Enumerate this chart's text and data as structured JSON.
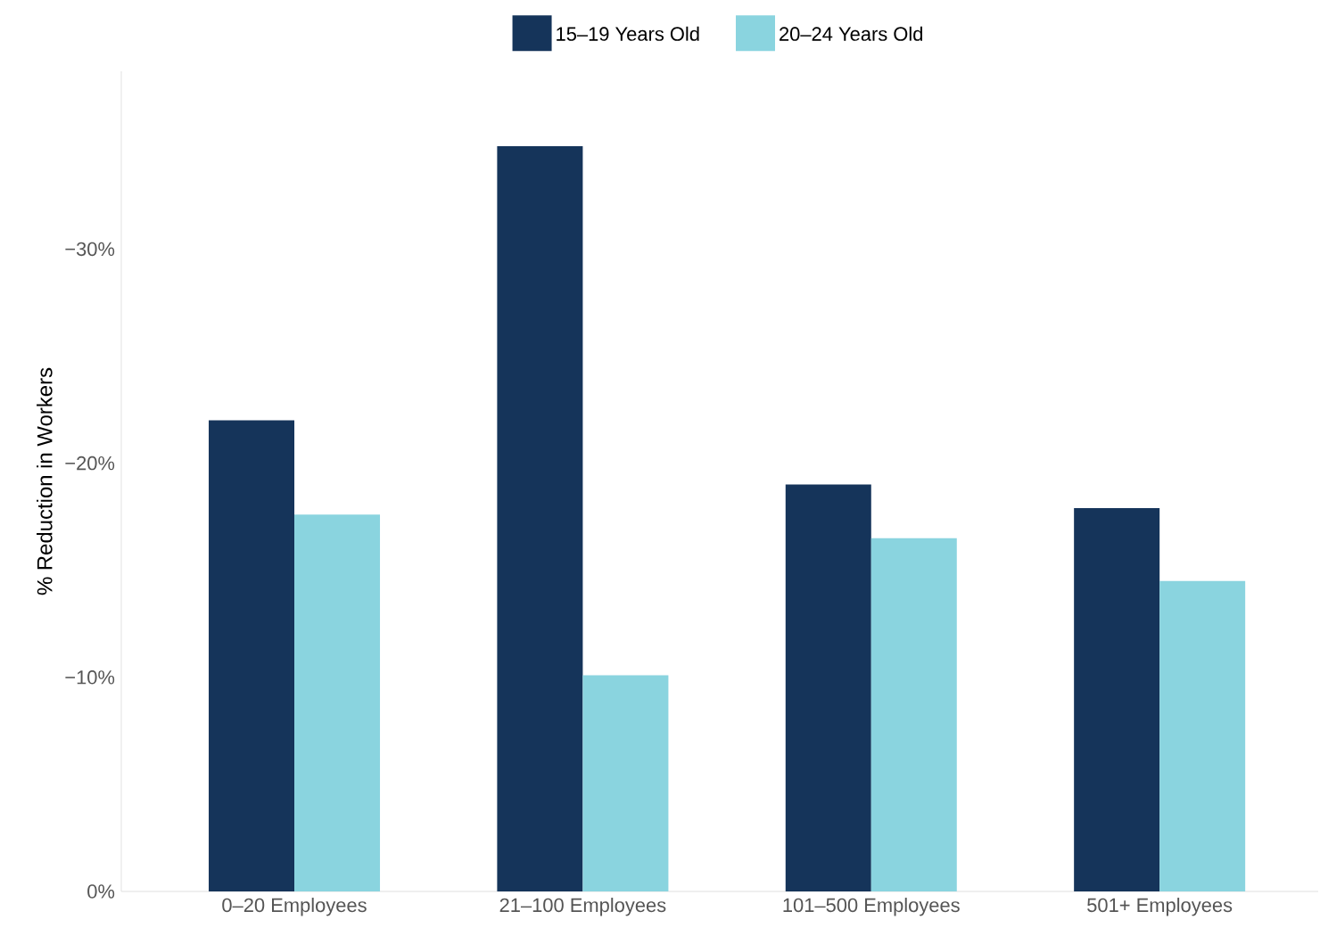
{
  "chart_data": {
    "type": "bar",
    "ylabel": "% Reduction in Workers",
    "categories": [
      "0–20 Employees",
      "21–100 Employees",
      "101–500 Employees",
      "501+ Employees"
    ],
    "series": [
      {
        "name": "15–19 Years Old",
        "color": "#15345a",
        "values": [
          -22.0,
          -34.8,
          -19.0,
          -17.9
        ]
      },
      {
        "name": "20–24 Years Old",
        "color": "#8ad4df",
        "values": [
          -17.6,
          -10.1,
          -16.5,
          -14.5
        ]
      }
    ],
    "ylim": [
      0,
      -38.3
    ],
    "yticks": [
      {
        "value": 0,
        "label": "0%"
      },
      {
        "value": -10,
        "label": "−10%"
      },
      {
        "value": -20,
        "label": "−20%"
      },
      {
        "value": -30,
        "label": "−30%"
      }
    ],
    "legend": "top",
    "grid": false
  }
}
